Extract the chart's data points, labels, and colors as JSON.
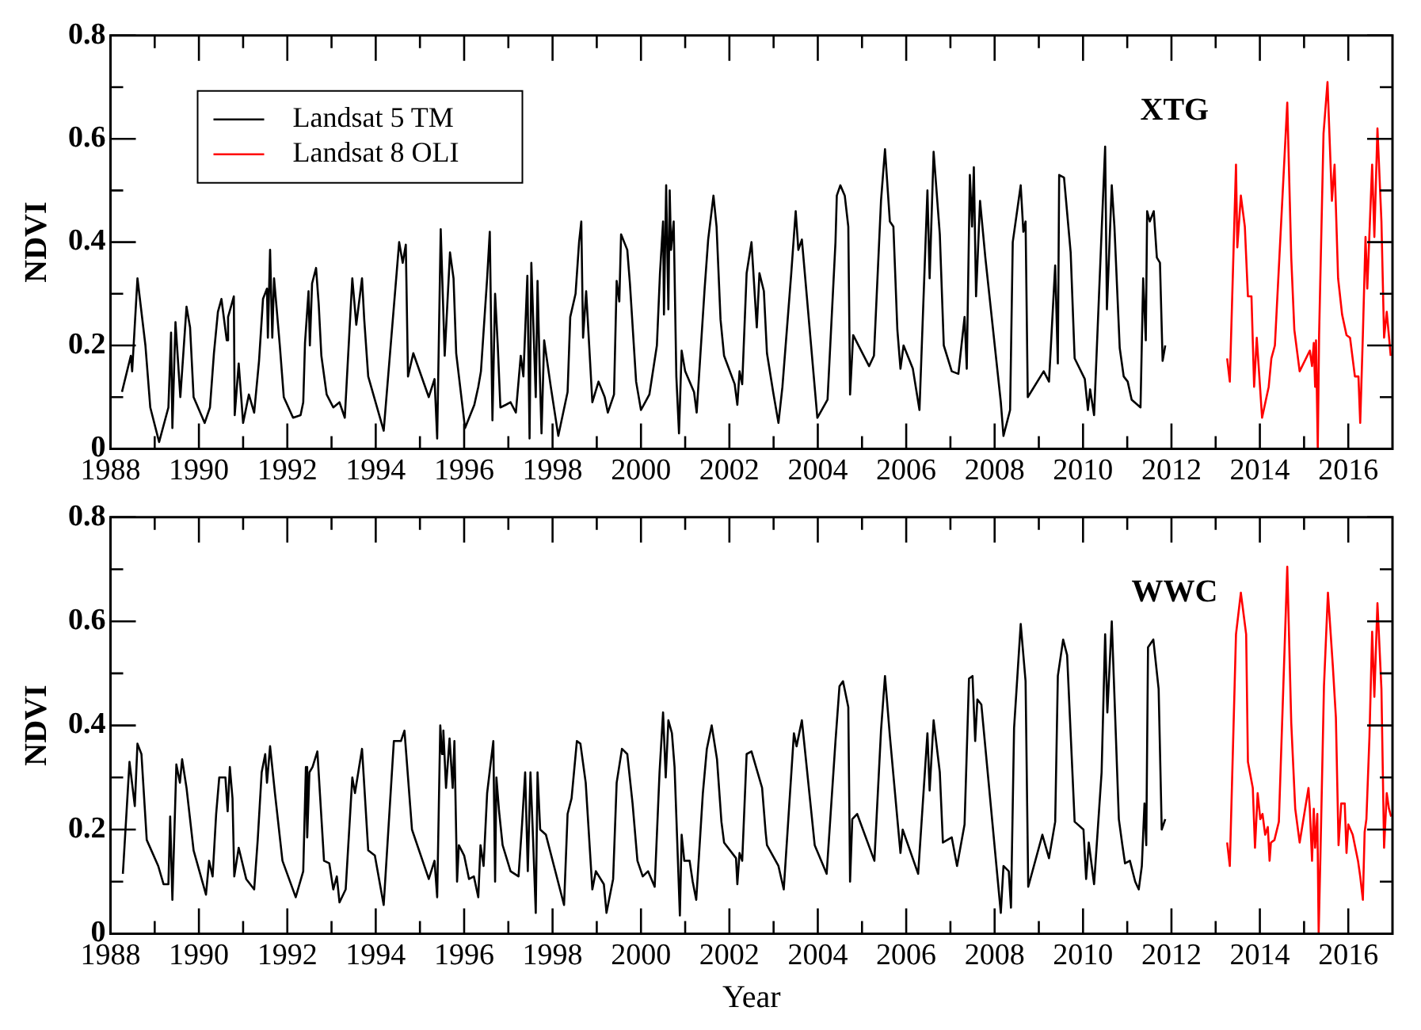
{
  "chart_data": [
    {
      "type": "line",
      "ylabel": "NDVI",
      "annotations": [
        "XTG"
      ],
      "legend": "top left",
      "grid": false,
      "marker": "none",
      "line_style": "solid",
      "xlim": [
        1988,
        2017
      ],
      "ylim": [
        0,
        0.8
      ],
      "xticks": [
        1988,
        {
          "value": 1989,
          "label": null
        },
        1990,
        {
          "value": 1991,
          "label": null
        },
        1992,
        {
          "value": 1993,
          "label": null
        },
        1994,
        {
          "value": 1995,
          "label": null
        },
        1996,
        {
          "value": 1997,
          "label": null
        },
        1998,
        {
          "value": 1999,
          "label": null
        },
        2000,
        {
          "value": 2001,
          "label": null
        },
        2002,
        {
          "value": 2003,
          "label": null
        },
        2004,
        {
          "value": 2005,
          "label": null
        },
        2006,
        {
          "value": 2007,
          "label": null
        },
        2008,
        {
          "value": 2009,
          "label": null
        },
        2010,
        {
          "value": 2011,
          "label": null
        },
        2012,
        {
          "value": 2013,
          "label": null
        },
        2014,
        {
          "value": 2015,
          "label": null
        },
        2016
      ],
      "yticks": [
        0,
        {
          "value": 0.1,
          "label": null
        },
        0.2,
        {
          "value": 0.3,
          "label": null
        },
        0.4,
        {
          "value": 0.5,
          "label": null
        },
        0.6,
        {
          "value": 0.7,
          "label": null
        },
        0.8
      ],
      "series": [
        {
          "name": "Landsat 5 TM",
          "color": "#000000",
          "x": [
            1988.26,
            1988.46,
            1988.49,
            1988.61,
            1988.79,
            1988.9,
            1989.1,
            1989.31,
            1989.37,
            1989.4,
            1989.47,
            1989.58,
            1989.72,
            1989.8,
            1989.88,
            1990.13,
            1990.25,
            1990.34,
            1990.43,
            1990.51,
            1990.63,
            1990.66,
            1990.79,
            1990.81,
            1990.9,
            1991.0,
            1991.13,
            1991.25,
            1991.36,
            1991.45,
            1991.54,
            1991.56,
            1991.61,
            1991.66,
            1991.7,
            1991.83,
            1991.92,
            1992.13,
            1992.3,
            1992.36,
            1992.4,
            1992.48,
            1992.51,
            1992.56,
            1992.65,
            1992.71,
            1992.77,
            1992.89,
            1993.04,
            1993.18,
            1993.3,
            1993.47,
            1993.56,
            1993.69,
            1993.74,
            1993.83,
            1994.18,
            1994.53,
            1994.61,
            1994.68,
            1994.73,
            1994.85,
            1995.2,
            1995.33,
            1995.39,
            1995.47,
            1995.56,
            1995.68,
            1995.76,
            1995.82,
            1996.02,
            1996.23,
            1996.32,
            1996.38,
            1996.52,
            1996.58,
            1996.64,
            1996.7,
            1996.76,
            1996.82,
            1996.94,
            1997.05,
            1997.17,
            1997.28,
            1997.34,
            1997.43,
            1997.48,
            1997.52,
            1997.62,
            1997.66,
            1997.71,
            1997.75,
            1997.81,
            1997.96,
            1998.13,
            1998.34,
            1998.4,
            1998.52,
            1998.6,
            1998.65,
            1998.69,
            1998.76,
            1998.9,
            1999.04,
            1999.18,
            1999.25,
            1999.39,
            1999.45,
            1999.51,
            1999.55,
            1999.69,
            1999.75,
            1999.89,
            2000.0,
            2000.19,
            2000.36,
            2000.43,
            2000.5,
            2000.52,
            2000.57,
            2000.62,
            2000.65,
            2000.68,
            2000.74,
            2000.8,
            2000.86,
            2000.92,
            2001.0,
            2001.2,
            2001.26,
            2001.44,
            2001.52,
            2001.64,
            2001.71,
            2001.8,
            2001.88,
            2002.12,
            2002.18,
            2002.23,
            2002.29,
            2002.39,
            2002.5,
            2002.62,
            2002.68,
            2002.78,
            2002.85,
            2002.99,
            2003.11,
            2003.2,
            2003.4,
            2003.5,
            2003.56,
            2003.64,
            2003.99,
            2004.22,
            2004.4,
            2004.43,
            2004.51,
            2004.61,
            2004.69,
            2004.73,
            2004.8,
            2005.16,
            2005.27,
            2005.43,
            2005.52,
            2005.63,
            2005.71,
            2005.8,
            2005.87,
            2005.94,
            2006.15,
            2006.3,
            2006.48,
            2006.53,
            2006.62,
            2006.76,
            2006.85,
            2007.03,
            2007.18,
            2007.32,
            2007.37,
            2007.44,
            2007.49,
            2007.53,
            2007.58,
            2007.67,
            2007.79,
            2008.14,
            2008.2,
            2008.35,
            2008.41,
            2008.59,
            2008.65,
            2008.7,
            2008.75,
            2009.11,
            2009.23,
            2009.37,
            2009.43,
            2009.46,
            2009.57,
            2009.72,
            2009.81,
            2010.04,
            2010.11,
            2010.16,
            2010.25,
            2010.42,
            2010.5,
            2010.54,
            2010.65,
            2010.71,
            2010.83,
            2010.92,
            2011.01,
            2011.1,
            2011.3,
            2011.36,
            2011.42,
            2011.45,
            2011.51,
            2011.6,
            2011.67,
            2011.74,
            2011.8,
            2011.86
          ],
          "values": [
            0.11,
            0.18,
            0.15,
            0.33,
            0.2,
            0.08,
            0.013,
            0.08,
            0.225,
            0.04,
            0.245,
            0.1,
            0.275,
            0.235,
            0.1,
            0.05,
            0.08,
            0.185,
            0.265,
            0.29,
            0.21,
            0.255,
            0.295,
            0.065,
            0.165,
            0.05,
            0.105,
            0.07,
            0.17,
            0.29,
            0.31,
            0.215,
            0.385,
            0.215,
            0.33,
            0.2,
            0.1,
            0.06,
            0.065,
            0.09,
            0.205,
            0.305,
            0.2,
            0.32,
            0.35,
            0.28,
            0.18,
            0.105,
            0.08,
            0.09,
            0.06,
            0.33,
            0.24,
            0.33,
            0.25,
            0.14,
            0.035,
            0.4,
            0.36,
            0.395,
            0.14,
            0.185,
            0.1,
            0.135,
            0.02,
            0.425,
            0.18,
            0.38,
            0.33,
            0.185,
            0.04,
            0.085,
            0.12,
            0.15,
            0.33,
            0.42,
            0.055,
            0.3,
            0.2,
            0.08,
            0.085,
            0.09,
            0.07,
            0.18,
            0.14,
            0.335,
            0.02,
            0.36,
            0.1,
            0.325,
            0.15,
            0.03,
            0.21,
            0.12,
            0.025,
            0.11,
            0.255,
            0.3,
            0.4,
            0.44,
            0.215,
            0.305,
            0.09,
            0.13,
            0.1,
            0.07,
            0.105,
            0.325,
            0.285,
            0.415,
            0.385,
            0.32,
            0.13,
            0.075,
            0.105,
            0.2,
            0.34,
            0.44,
            0.26,
            0.51,
            0.27,
            0.5,
            0.385,
            0.44,
            0.14,
            0.03,
            0.19,
            0.15,
            0.11,
            0.07,
            0.31,
            0.405,
            0.49,
            0.43,
            0.25,
            0.18,
            0.125,
            0.085,
            0.15,
            0.125,
            0.34,
            0.4,
            0.235,
            0.34,
            0.305,
            0.185,
            0.11,
            0.05,
            0.12,
            0.34,
            0.46,
            0.385,
            0.405,
            0.06,
            0.095,
            0.4,
            0.49,
            0.51,
            0.49,
            0.43,
            0.105,
            0.22,
            0.16,
            0.18,
            0.48,
            0.58,
            0.44,
            0.43,
            0.23,
            0.155,
            0.2,
            0.155,
            0.075,
            0.5,
            0.33,
            0.575,
            0.415,
            0.2,
            0.15,
            0.145,
            0.255,
            0.155,
            0.53,
            0.43,
            0.545,
            0.295,
            0.48,
            0.37,
            0.09,
            0.025,
            0.075,
            0.4,
            0.51,
            0.42,
            0.44,
            0.1,
            0.15,
            0.13,
            0.355,
            0.165,
            0.53,
            0.525,
            0.38,
            0.175,
            0.135,
            0.075,
            0.115,
            0.065,
            0.42,
            0.585,
            0.27,
            0.51,
            0.43,
            0.195,
            0.14,
            0.13,
            0.095,
            0.08,
            0.33,
            0.21,
            0.46,
            0.44,
            0.46,
            0.37,
            0.36,
            0.17,
            0.2
          ]
        },
        {
          "name": "Landsat 8 OLI",
          "color": "#ff0000",
          "x": [
            2013.26,
            2013.32,
            2013.46,
            2013.49,
            2013.57,
            2013.66,
            2013.73,
            2013.81,
            2013.87,
            2013.93,
            2014.05,
            2014.2,
            2014.26,
            2014.34,
            2014.62,
            2014.71,
            2014.78,
            2014.9,
            2015.13,
            2015.18,
            2015.22,
            2015.25,
            2015.27,
            2015.31,
            2015.34,
            2015.44,
            2015.53,
            2015.63,
            2015.69,
            2015.77,
            2015.86,
            2015.96,
            2016.04,
            2016.15,
            2016.23,
            2016.27,
            2016.33,
            2016.39,
            2016.43,
            2016.54,
            2016.59,
            2016.66,
            2016.75,
            2016.81,
            2016.87,
            2016.96
          ],
          "values": [
            0.175,
            0.13,
            0.55,
            0.39,
            0.49,
            0.43,
            0.295,
            0.295,
            0.12,
            0.215,
            0.06,
            0.12,
            0.175,
            0.2,
            0.67,
            0.37,
            0.23,
            0.15,
            0.19,
            0.16,
            0.205,
            0.12,
            0.21,
            0,
            0.22,
            0.61,
            0.71,
            0.48,
            0.55,
            0.33,
            0.26,
            0.22,
            0.215,
            0.14,
            0.14,
            0.05,
            0.22,
            0.41,
            0.31,
            0.55,
            0.41,
            0.62,
            0.44,
            0.215,
            0.265,
            0.18
          ]
        }
      ]
    },
    {
      "type": "line",
      "xlabel": "Year",
      "ylabel": "NDVI",
      "annotations": [
        "WWC"
      ],
      "grid": false,
      "marker": "none",
      "line_style": "solid",
      "xlim": [
        1988,
        2017
      ],
      "ylim": [
        0,
        0.8
      ],
      "xticks": [
        1988,
        {
          "value": 1989,
          "label": null
        },
        1990,
        {
          "value": 1991,
          "label": null
        },
        1992,
        {
          "value": 1993,
          "label": null
        },
        1994,
        {
          "value": 1995,
          "label": null
        },
        1996,
        {
          "value": 1997,
          "label": null
        },
        1998,
        {
          "value": 1999,
          "label": null
        },
        2000,
        {
          "value": 2001,
          "label": null
        },
        2002,
        {
          "value": 2003,
          "label": null
        },
        2004,
        {
          "value": 2005,
          "label": null
        },
        2006,
        {
          "value": 2007,
          "label": null
        },
        2008,
        {
          "value": 2009,
          "label": null
        },
        2010,
        {
          "value": 2011,
          "label": null
        },
        2012,
        {
          "value": 2013,
          "label": null
        },
        2014,
        {
          "value": 2015,
          "label": null
        },
        2016
      ],
      "yticks": [
        0,
        {
          "value": 0.1,
          "label": null
        },
        0.2,
        {
          "value": 0.3,
          "label": null
        },
        0.4,
        {
          "value": 0.5,
          "label": null
        },
        0.6,
        {
          "value": 0.7,
          "label": null
        },
        0.8
      ],
      "series": [
        {
          "color": "#000000",
          "x": [
            1988.28,
            1988.43,
            1988.55,
            1988.61,
            1988.7,
            1988.82,
            1989.08,
            1989.2,
            1989.31,
            1989.35,
            1989.4,
            1989.49,
            1989.57,
            1989.62,
            1989.72,
            1989.88,
            1990.16,
            1990.23,
            1990.31,
            1990.39,
            1990.46,
            1990.6,
            1990.65,
            1990.7,
            1990.76,
            1990.8,
            1990.9,
            1991.07,
            1991.25,
            1991.33,
            1991.42,
            1991.5,
            1991.54,
            1991.61,
            1991.72,
            1991.89,
            1992.19,
            1992.36,
            1992.42,
            1992.45,
            1992.5,
            1992.57,
            1992.68,
            1992.83,
            1992.95,
            1993.04,
            1993.12,
            1993.18,
            1993.32,
            1993.47,
            1993.53,
            1993.69,
            1993.83,
            1993.98,
            1994.18,
            1994.41,
            1994.57,
            1994.65,
            1994.82,
            1995.2,
            1995.33,
            1995.39,
            1995.46,
            1995.5,
            1995.53,
            1995.59,
            1995.67,
            1995.74,
            1995.78,
            1995.84,
            1995.88,
            1996.0,
            1996.11,
            1996.22,
            1996.32,
            1996.37,
            1996.44,
            1996.52,
            1996.66,
            1996.7,
            1996.73,
            1996.79,
            1996.87,
            1997.05,
            1997.23,
            1997.31,
            1997.38,
            1997.44,
            1997.5,
            1997.56,
            1997.62,
            1997.66,
            1997.72,
            1997.85,
            1998.26,
            1998.34,
            1998.43,
            1998.55,
            1998.63,
            1998.75,
            1998.9,
            1998.98,
            1999.16,
            1999.22,
            1999.37,
            1999.45,
            1999.57,
            1999.69,
            1999.81,
            1999.92,
            2000.04,
            2000.16,
            2000.31,
            2000.42,
            2000.5,
            2000.56,
            2000.62,
            2000.7,
            2000.76,
            2000.88,
            2000.92,
            2000.98,
            2001.1,
            2001.17,
            2001.25,
            2001.4,
            2001.49,
            2001.6,
            2001.72,
            2001.82,
            2001.88,
            2002.15,
            2002.18,
            2002.23,
            2002.29,
            2002.39,
            2002.5,
            2002.74,
            2002.82,
            2002.85,
            2003.11,
            2003.23,
            2003.46,
            2003.52,
            2003.64,
            2003.93,
            2004.2,
            2004.4,
            2004.49,
            2004.57,
            2004.69,
            2004.73,
            2004.78,
            2004.89,
            2005.28,
            2005.43,
            2005.52,
            2005.63,
            2005.8,
            2005.87,
            2005.92,
            2006.27,
            2006.48,
            2006.53,
            2006.62,
            2006.76,
            2006.83,
            2007.03,
            2007.15,
            2007.32,
            2007.42,
            2007.5,
            2007.56,
            2007.61,
            2007.7,
            2008.14,
            2008.2,
            2008.32,
            2008.37,
            2008.44,
            2008.59,
            2008.7,
            2008.76,
            2009.08,
            2009.23,
            2009.37,
            2009.43,
            2009.55,
            2009.64,
            2009.81,
            2010.01,
            2010.07,
            2010.13,
            2010.25,
            2010.42,
            2010.5,
            2010.55,
            2010.65,
            2010.81,
            2010.89,
            2010.95,
            2011.06,
            2011.18,
            2011.26,
            2011.33,
            2011.39,
            2011.43,
            2011.47,
            2011.59,
            2011.71,
            2011.78,
            2011.86
          ],
          "values": [
            0.115,
            0.33,
            0.245,
            0.365,
            0.345,
            0.18,
            0.13,
            0.095,
            0.095,
            0.225,
            0.065,
            0.325,
            0.29,
            0.335,
            0.28,
            0.16,
            0.075,
            0.14,
            0.11,
            0.23,
            0.3,
            0.3,
            0.235,
            0.32,
            0.26,
            0.11,
            0.165,
            0.105,
            0.085,
            0.18,
            0.31,
            0.345,
            0.29,
            0.36,
            0.27,
            0.14,
            0.07,
            0.12,
            0.32,
            0.185,
            0.31,
            0.32,
            0.35,
            0.14,
            0.135,
            0.085,
            0.11,
            0.06,
            0.085,
            0.3,
            0.27,
            0.355,
            0.16,
            0.15,
            0.055,
            0.37,
            0.37,
            0.39,
            0.2,
            0.105,
            0.14,
            0.07,
            0.4,
            0.345,
            0.39,
            0.28,
            0.375,
            0.28,
            0.37,
            0.1,
            0.17,
            0.15,
            0.105,
            0.11,
            0.07,
            0.17,
            0.13,
            0.27,
            0.37,
            0.1,
            0.3,
            0.235,
            0.17,
            0.12,
            0.11,
            0.21,
            0.31,
            0.12,
            0.31,
            0.18,
            0.04,
            0.31,
            0.2,
            0.19,
            0.055,
            0.23,
            0.26,
            0.37,
            0.365,
            0.29,
            0.085,
            0.12,
            0.095,
            0.04,
            0.105,
            0.29,
            0.355,
            0.345,
            0.25,
            0.14,
            0.11,
            0.12,
            0.09,
            0.31,
            0.425,
            0.3,
            0.41,
            0.385,
            0.32,
            0.035,
            0.19,
            0.14,
            0.14,
            0.1,
            0.065,
            0.27,
            0.355,
            0.4,
            0.335,
            0.215,
            0.175,
            0.145,
            0.095,
            0.155,
            0.14,
            0.345,
            0.35,
            0.28,
            0.195,
            0.17,
            0.13,
            0.085,
            0.385,
            0.36,
            0.41,
            0.17,
            0.115,
            0.37,
            0.475,
            0.485,
            0.435,
            0.1,
            0.22,
            0.23,
            0.14,
            0.39,
            0.495,
            0.38,
            0.22,
            0.155,
            0.2,
            0.115,
            0.385,
            0.275,
            0.41,
            0.31,
            0.175,
            0.185,
            0.13,
            0.21,
            0.49,
            0.495,
            0.37,
            0.45,
            0.44,
            0.04,
            0.13,
            0.12,
            0.05,
            0.395,
            0.595,
            0.485,
            0.09,
            0.19,
            0.145,
            0.215,
            0.495,
            0.565,
            0.535,
            0.215,
            0.2,
            0.105,
            0.175,
            0.095,
            0.31,
            0.575,
            0.425,
            0.6,
            0.22,
            0.17,
            0.135,
            0.14,
            0.1,
            0.085,
            0.13,
            0.25,
            0.17,
            0.55,
            0.565,
            0.47,
            0.2,
            0.22
          ]
        },
        {
          "color": "#ff0000",
          "x": [
            2013.26,
            2013.32,
            2013.46,
            2013.57,
            2013.69,
            2013.73,
            2013.84,
            2013.89,
            2013.95,
            2014.01,
            2014.06,
            2014.12,
            2014.18,
            2014.22,
            2014.25,
            2014.33,
            2014.43,
            2014.62,
            2014.71,
            2014.8,
            2014.9,
            2015.1,
            2015.13,
            2015.18,
            2015.22,
            2015.25,
            2015.3,
            2015.33,
            2015.37,
            2015.45,
            2015.54,
            2015.65,
            2015.72,
            2015.78,
            2015.84,
            2015.92,
            2015.96,
            2016.0,
            2016.1,
            2016.22,
            2016.27,
            2016.33,
            2016.37,
            2016.41,
            2016.48,
            2016.54,
            2016.59,
            2016.66,
            2016.75,
            2016.81,
            2016.87,
            2016.92,
            2016.97
          ],
          "values": [
            0.175,
            0.13,
            0.575,
            0.655,
            0.575,
            0.33,
            0.28,
            0.165,
            0.27,
            0.22,
            0.23,
            0.19,
            0.205,
            0.14,
            0.175,
            0.18,
            0.215,
            0.705,
            0.405,
            0.24,
            0.175,
            0.28,
            0.24,
            0.14,
            0.24,
            0.165,
            0.23,
            0,
            0.15,
            0.475,
            0.655,
            0.515,
            0.415,
            0.17,
            0.25,
            0.25,
            0.155,
            0.21,
            0.19,
            0.14,
            0.11,
            0.065,
            0.195,
            0.22,
            0.38,
            0.58,
            0.455,
            0.635,
            0.47,
            0.165,
            0.27,
            0.24,
            0.225
          ]
        }
      ]
    }
  ]
}
